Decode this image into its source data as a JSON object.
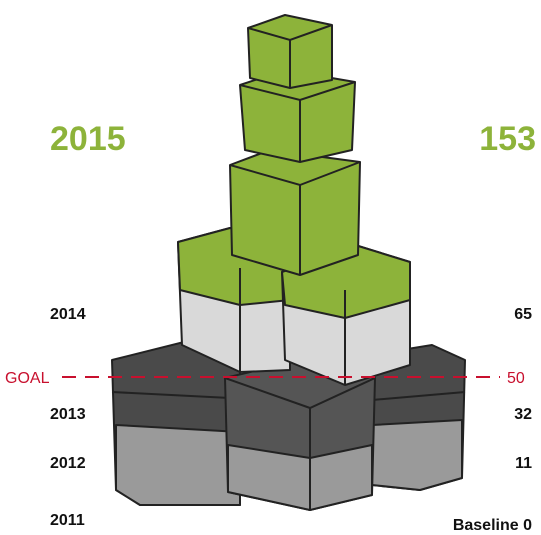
{
  "current": {
    "year": "2015",
    "value": 153
  },
  "rows": [
    {
      "year": "2014",
      "value": 65
    },
    {
      "year": "2013",
      "value": 32
    },
    {
      "year": "2012",
      "value": 11
    },
    {
      "year": "2011",
      "label": "Baseline",
      "value": 0
    }
  ],
  "goal": {
    "label": "GOAL",
    "value": 50
  }
}
